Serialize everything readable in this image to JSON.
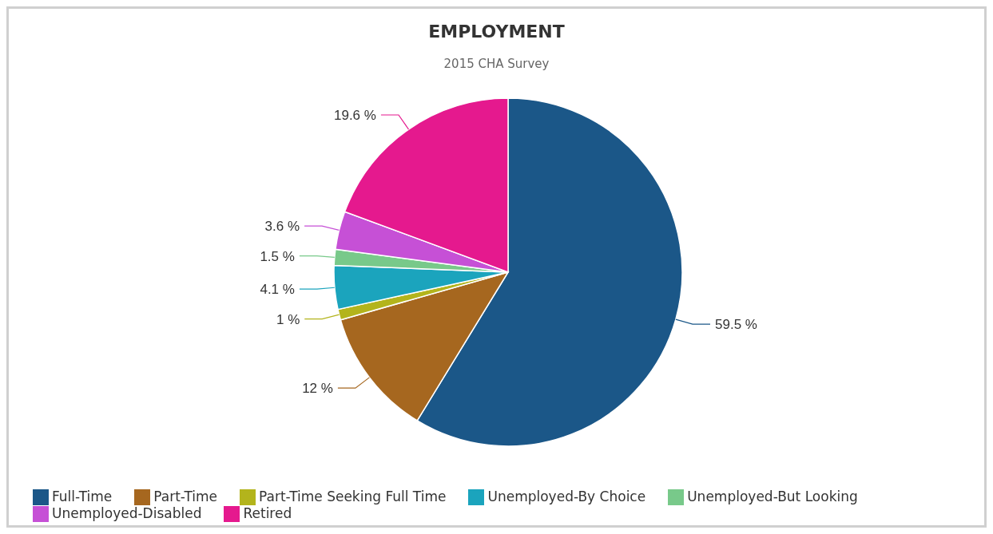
{
  "chart_data": {
    "type": "pie",
    "title": "EMPLOYMENT",
    "subtitle": "2015 CHA Survey",
    "categories": [
      "Full-Time",
      "Part-Time",
      "Part-Time Seeking Full Time",
      "Unemployed-By Choice",
      "Unemployed-But Looking",
      "Unemployed-Disabled",
      "Retired"
    ],
    "values": [
      59.5,
      12,
      1,
      4.1,
      1.5,
      3.6,
      19.6
    ],
    "value_labels": [
      "59.5 %",
      "12 %",
      "1 %",
      "4.1 %",
      "1.5 %",
      "3.6 %",
      "19.6 %"
    ],
    "colors": [
      "#1b5788",
      "#a6671f",
      "#b3b41c",
      "#1ba4bd",
      "#78c98a",
      "#c650d6",
      "#e5198e"
    ],
    "legend": "bottom"
  }
}
